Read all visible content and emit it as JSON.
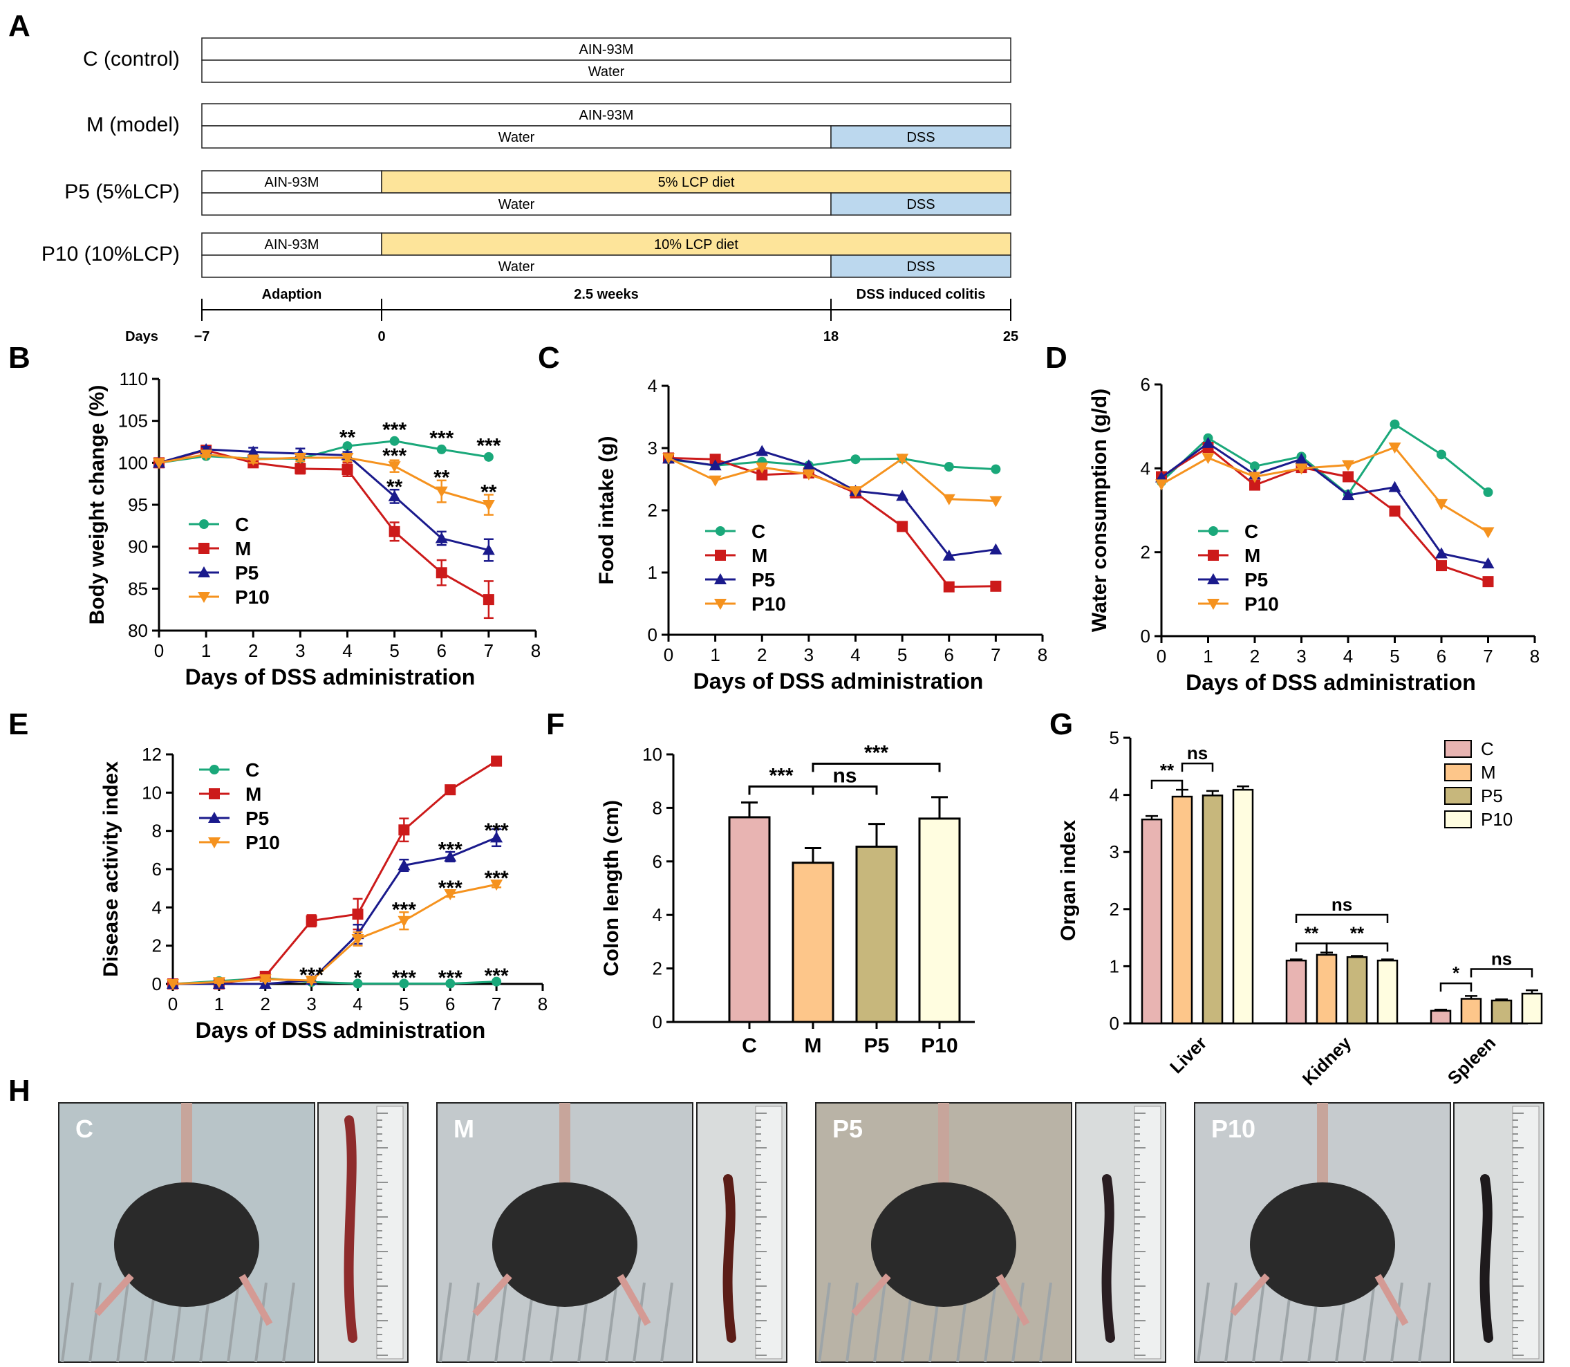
{
  "panel_letters": [
    "A",
    "B",
    "C",
    "D",
    "E",
    "F",
    "G",
    "H"
  ],
  "colors": {
    "C": "#1aa87a",
    "M": "#cc1a1a",
    "P5": "#1a1a8c",
    "P10": "#f5921e",
    "dss_fill": "#bcd8ee",
    "lcp_fill": "#fde49a",
    "bar_C": "#e8b4b2",
    "bar_M": "#fdc68a",
    "bar_P5": "#c7b77c",
    "bar_P10": "#fffde0"
  },
  "design": {
    "groups": [
      {
        "label": "C (control)",
        "diet": [
          {
            "text": "AIN-93M",
            "type": "plain"
          }
        ],
        "water": [
          {
            "text": "Water",
            "type": "plain"
          }
        ]
      },
      {
        "label": "M (model)",
        "diet": [
          {
            "text": "AIN-93M",
            "type": "plain"
          }
        ],
        "water": [
          {
            "text": "Water",
            "type": "plain"
          },
          {
            "text": "DSS",
            "type": "dss"
          }
        ]
      },
      {
        "label": "P5 (5%LCP)",
        "diet": [
          {
            "text": "AIN-93M",
            "type": "plain"
          },
          {
            "text": "5% LCP diet",
            "type": "lcp"
          }
        ],
        "water": [
          {
            "text": "Water",
            "type": "plain"
          },
          {
            "text": "DSS",
            "type": "dss"
          }
        ]
      },
      {
        "label": "P10 (10%LCP)",
        "diet": [
          {
            "text": "AIN-93M",
            "type": "plain"
          },
          {
            "text": "10% LCP diet",
            "type": "lcp"
          }
        ],
        "water": [
          {
            "text": "Water",
            "type": "plain"
          },
          {
            "text": "DSS",
            "type": "dss"
          }
        ]
      }
    ],
    "timeline": {
      "phases": [
        "Adaption",
        "2.5 weeks",
        "DSS induced colitis"
      ],
      "days_label": "Days",
      "ticks": [
        "−7",
        "0",
        "18",
        "25"
      ]
    }
  },
  "chart_data": [
    {
      "panel": "B",
      "type": "line",
      "xlabel": "Days of DSS administration",
      "ylabel": "Body weight change (%)",
      "xlim": [
        0,
        8
      ],
      "ylim": [
        80,
        110
      ],
      "xticks": [
        "0",
        "1",
        "2",
        "3",
        "4",
        "5",
        "6",
        "7",
        "8"
      ],
      "yticks": [
        "80",
        "85",
        "90",
        "95",
        "100",
        "105",
        "110"
      ],
      "x": [
        0,
        1,
        2,
        3,
        4,
        5,
        6,
        7
      ],
      "series": [
        {
          "name": "C",
          "values": [
            100,
            100.8,
            100.5,
            100.5,
            102.0,
            102.6,
            101.6,
            100.7
          ]
        },
        {
          "name": "M",
          "values": [
            100,
            101.5,
            100.0,
            99.3,
            99.2,
            91.8,
            86.9,
            83.7
          ],
          "errors": [
            0,
            0.3,
            0.4,
            0.6,
            0.8,
            1.1,
            1.5,
            2.2
          ]
        },
        {
          "name": "P5",
          "values": [
            100,
            101.6,
            101.3,
            101.1,
            100.9,
            96.0,
            91.0,
            89.6
          ],
          "errors": [
            0,
            0.3,
            0.5,
            0.6,
            0.4,
            0.8,
            0.8,
            1.3
          ]
        },
        {
          "name": "P10",
          "values": [
            100,
            101.0,
            100.4,
            100.6,
            100.6,
            99.6,
            96.6,
            95.0
          ],
          "errors": [
            0,
            0.3,
            0.4,
            0.4,
            0.4,
            0.7,
            1.3,
            1.2
          ]
        }
      ],
      "annotations": [
        {
          "x": 4,
          "y": 103.2,
          "text": "**"
        },
        {
          "x": 5,
          "y": 104.1,
          "text": "***"
        },
        {
          "x": 5,
          "y": 101.0,
          "text": "***"
        },
        {
          "x": 5,
          "y": 97.3,
          "text": "**"
        },
        {
          "x": 6,
          "y": 103.1,
          "text": "***"
        },
        {
          "x": 6,
          "y": 98.4,
          "text": "**"
        },
        {
          "x": 7,
          "y": 102.2,
          "text": "***"
        },
        {
          "x": 7,
          "y": 96.7,
          "text": "**"
        }
      ],
      "legend": [
        "C",
        "M",
        "P5",
        "P10"
      ],
      "legend_position": "lower-left"
    },
    {
      "panel": "C",
      "type": "line",
      "xlabel": "Days of DSS administration",
      "ylabel": "Food intake (g)",
      "xlim": [
        0,
        8
      ],
      "ylim": [
        0,
        4
      ],
      "xticks": [
        "0",
        "1",
        "2",
        "3",
        "4",
        "5",
        "6",
        "7",
        "8"
      ],
      "yticks": [
        "0",
        "1",
        "2",
        "3",
        "4"
      ],
      "x": [
        0,
        1,
        2,
        3,
        4,
        5,
        6,
        7
      ],
      "series": [
        {
          "name": "C",
          "values": [
            2.82,
            2.72,
            2.78,
            2.72,
            2.82,
            2.83,
            2.7,
            2.66
          ]
        },
        {
          "name": "M",
          "values": [
            2.84,
            2.82,
            2.57,
            2.6,
            2.28,
            1.74,
            0.77,
            0.78
          ]
        },
        {
          "name": "P5",
          "values": [
            2.83,
            2.72,
            2.95,
            2.72,
            2.31,
            2.23,
            1.27,
            1.37
          ]
        },
        {
          "name": "P10",
          "values": [
            2.84,
            2.48,
            2.69,
            2.58,
            2.31,
            2.83,
            2.18,
            2.15
          ]
        }
      ],
      "legend": [
        "C",
        "M",
        "P5",
        "P10"
      ],
      "legend_position": "lower-left"
    },
    {
      "panel": "D",
      "type": "line",
      "xlabel": "Days of DSS administration",
      "ylabel": "Water consumption (g/d)",
      "xlim": [
        0,
        8
      ],
      "ylim": [
        0,
        6
      ],
      "xticks": [
        "0",
        "1",
        "2",
        "3",
        "4",
        "5",
        "6",
        "7",
        "8"
      ],
      "yticks": [
        "0",
        "2",
        "4",
        "6"
      ],
      "x": [
        0,
        1,
        2,
        3,
        4,
        5,
        6,
        7
      ],
      "series": [
        {
          "name": "C",
          "values": [
            3.68,
            4.72,
            4.05,
            4.28,
            3.38,
            5.05,
            4.33,
            3.43
          ]
        },
        {
          "name": "M",
          "values": [
            3.8,
            4.5,
            3.6,
            4.02,
            3.8,
            2.98,
            1.68,
            1.3
          ]
        },
        {
          "name": "P5",
          "values": [
            3.78,
            4.6,
            3.85,
            4.22,
            3.36,
            3.55,
            1.97,
            1.73
          ]
        },
        {
          "name": "P10",
          "values": [
            3.62,
            4.25,
            3.8,
            4.0,
            4.08,
            4.5,
            3.15,
            2.48
          ]
        }
      ],
      "legend": [
        "C",
        "M",
        "P5",
        "P10"
      ],
      "legend_position": "lower-left"
    },
    {
      "panel": "E",
      "type": "line",
      "xlabel": "Days of DSS administration",
      "ylabel": "Disease activity index",
      "xlim": [
        0,
        8
      ],
      "ylim": [
        0,
        12
      ],
      "xticks": [
        "0",
        "1",
        "2",
        "3",
        "4",
        "5",
        "6",
        "7",
        "8"
      ],
      "yticks": [
        "0",
        "2",
        "4",
        "6",
        "8",
        "10",
        "12"
      ],
      "x": [
        0,
        1,
        2,
        3,
        4,
        5,
        6,
        7
      ],
      "series": [
        {
          "name": "C",
          "values": [
            0,
            0.15,
            0.3,
            0.1,
            0.02,
            0.02,
            0.02,
            0.12
          ]
        },
        {
          "name": "M",
          "values": [
            0,
            0,
            0.4,
            3.3,
            3.65,
            8.05,
            10.15,
            11.65
          ],
          "errors": [
            0,
            0,
            0.1,
            0.3,
            0.8,
            0.6,
            0.1,
            0.1
          ]
        },
        {
          "name": "P5",
          "values": [
            0,
            0,
            0,
            0.2,
            2.6,
            6.2,
            6.65,
            7.65
          ],
          "errors": [
            0,
            0,
            0,
            0.1,
            0.5,
            0.3,
            0.25,
            0.45
          ]
        },
        {
          "name": "P10",
          "values": [
            0,
            0.1,
            0.25,
            0.18,
            2.35,
            3.3,
            4.7,
            5.2
          ],
          "errors": [
            0,
            0.05,
            0.1,
            0.1,
            0.35,
            0.45,
            0.15,
            0.15
          ]
        }
      ],
      "annotations": [
        {
          "x": 3,
          "y": 0.55,
          "text": "***"
        },
        {
          "x": 4,
          "y": 0.4,
          "text": "*"
        },
        {
          "x": 5,
          "y": 0.4,
          "text": "***"
        },
        {
          "x": 5,
          "y": 3.95,
          "text": "***"
        },
        {
          "x": 6,
          "y": 0.4,
          "text": "***"
        },
        {
          "x": 6,
          "y": 7.1,
          "text": "***"
        },
        {
          "x": 6,
          "y": 5.1,
          "text": "***"
        },
        {
          "x": 7,
          "y": 0.5,
          "text": "***"
        },
        {
          "x": 7,
          "y": 8.1,
          "text": "***"
        },
        {
          "x": 7,
          "y": 5.6,
          "text": "***"
        }
      ],
      "legend": [
        "C",
        "M",
        "P5",
        "P10"
      ],
      "legend_position": "top-left"
    },
    {
      "panel": "F",
      "type": "bar",
      "ylabel": "Colon length (cm)",
      "ylim": [
        0,
        10
      ],
      "yticks": [
        "0",
        "2",
        "4",
        "6",
        "8",
        "10"
      ],
      "categories": [
        "C",
        "M",
        "P5",
        "P10"
      ],
      "values": [
        7.65,
        5.95,
        6.55,
        7.6
      ],
      "errors": [
        0.55,
        0.55,
        0.85,
        0.8
      ],
      "significance": [
        {
          "from": 0,
          "to": 1,
          "text": "***",
          "y": 8.8
        },
        {
          "from": 1,
          "to": 2,
          "text": "ns",
          "y": 8.8
        },
        {
          "from": 1,
          "to": 3,
          "text": "***",
          "y": 9.65
        }
      ]
    },
    {
      "panel": "G",
      "type": "bar",
      "ylabel": "Organ index",
      "ylim": [
        0,
        5
      ],
      "yticks": [
        "0",
        "1",
        "2",
        "3",
        "4",
        "5"
      ],
      "categories": [
        "Liver",
        "Kidney",
        "Spleen"
      ],
      "series": [
        {
          "name": "C",
          "values": [
            3.57,
            1.1,
            0.22
          ],
          "errors": [
            0.06,
            0.02,
            0.02
          ]
        },
        {
          "name": "M",
          "values": [
            3.97,
            1.2,
            0.43
          ],
          "errors": [
            0.12,
            0.04,
            0.05
          ]
        },
        {
          "name": "P5",
          "values": [
            3.99,
            1.16,
            0.4
          ],
          "errors": [
            0.08,
            0.02,
            0.02
          ]
        },
        {
          "name": "P10",
          "values": [
            4.09,
            1.1,
            0.52
          ],
          "errors": [
            0.06,
            0.02,
            0.06
          ]
        }
      ],
      "significance": [
        {
          "group": 0,
          "from": 0,
          "to": 1,
          "text": "**",
          "y": 4.25
        },
        {
          "group": 0,
          "from": 1,
          "to": 2,
          "text": "ns",
          "y": 4.55
        },
        {
          "group": 1,
          "from": 0,
          "to": 1,
          "text": "**",
          "y": 1.4
        },
        {
          "group": 1,
          "from": 1,
          "to": 3,
          "text": "**",
          "y": 1.4
        },
        {
          "group": 1,
          "from": 0,
          "to": 3,
          "text": "ns",
          "y": 1.9
        },
        {
          "group": 2,
          "from": 0,
          "to": 1,
          "text": "*",
          "y": 0.7
        },
        {
          "group": 2,
          "from": 1,
          "to": 3,
          "text": "ns",
          "y": 0.95
        }
      ],
      "legend": [
        "C",
        "M",
        "P5",
        "P10"
      ],
      "legend_position": "top-right"
    }
  ],
  "photos": {
    "labels": [
      "C",
      "M",
      "P5",
      "P10"
    ]
  }
}
